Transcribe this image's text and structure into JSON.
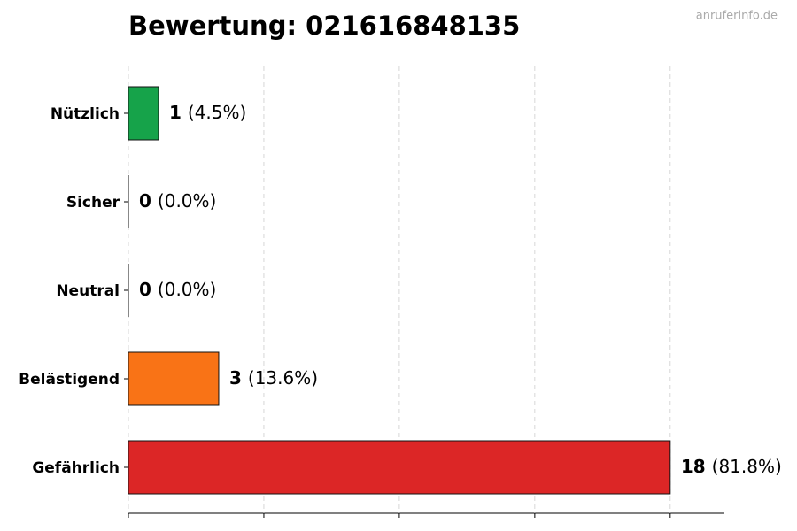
{
  "chart_data": {
    "type": "barh",
    "title": "Bewertung: 021616848135",
    "watermark": "anruferinfo.de",
    "categories": [
      "Nützlich",
      "Sicher",
      "Neutral",
      "Belästigend",
      "Gefährlich"
    ],
    "values": [
      1,
      0,
      0,
      3,
      18
    ],
    "share_labels": [
      "(4.5%)",
      "(0.0%)",
      "(0.0%)",
      "(13.6%)",
      "(81.8%)"
    ],
    "colors": [
      "#16a34a",
      "#6b7280",
      "#6b7280",
      "#f97316",
      "#dc2626"
    ],
    "xlim": [
      0,
      19.8
    ],
    "xticks": [
      0,
      4.5,
      9,
      13.5,
      18
    ],
    "grid": true
  }
}
